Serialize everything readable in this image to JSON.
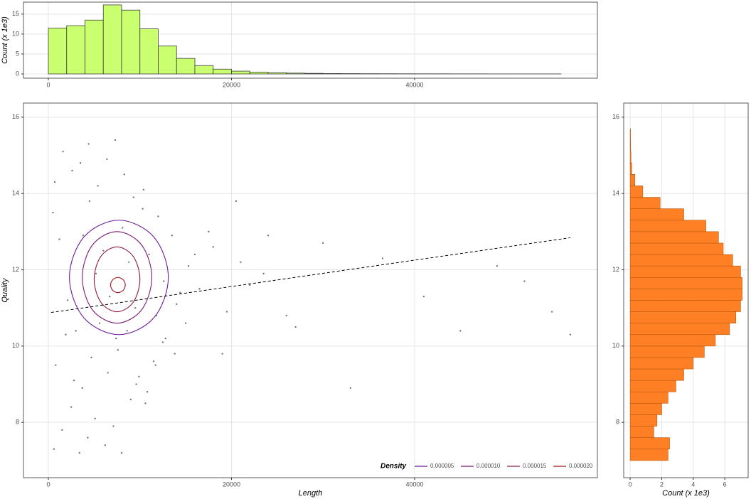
{
  "chart_data": [
    {
      "type": "histogram",
      "orientation": "vertical",
      "y_label": "Count (x 1e3)",
      "bins": [
        0,
        2000,
        4000,
        6000,
        8000,
        10000,
        12000,
        14000,
        16000,
        18000,
        20000,
        22000,
        24000,
        26000,
        28000,
        30000,
        32000,
        34000,
        36000,
        38000,
        40000,
        42000,
        44000,
        46000,
        48000,
        50000,
        52000,
        54000,
        56000
      ],
      "values": [
        11.5,
        12.1,
        13.5,
        17.3,
        16.0,
        11.3,
        7.0,
        3.9,
        2.1,
        1.2,
        0.7,
        0.45,
        0.3,
        0.2,
        0.15,
        0.1,
        0.08,
        0.06,
        0.05,
        0.04,
        0.03,
        0.03,
        0.02,
        0.02,
        0.01,
        0.01,
        0.01,
        0.01
      ],
      "color": "#caff70",
      "edge_color": "#3d3d3d",
      "xlim": [
        -2718,
        59961
      ],
      "xticks": [
        0,
        20000,
        40000
      ],
      "ylim": [
        -1.07,
        18.0
      ],
      "yticks": [
        0,
        5,
        10,
        15
      ],
      "grid": true
    },
    {
      "type": "scatter",
      "x_label": "Length",
      "y_label": "Quality",
      "color": "#3a3a3a",
      "x": [
        500,
        1200,
        2100,
        3000,
        3800,
        4500,
        5200,
        6000,
        6700,
        7400,
        8100,
        8800,
        9500,
        10300,
        11000,
        11800,
        12600,
        13500,
        14400,
        15300,
        600,
        1500,
        2500,
        3400,
        4300,
        5100,
        6200,
        7100,
        8000,
        9000,
        9900,
        10800,
        11700,
        12500,
        13800,
        15000,
        16500,
        18000,
        19500,
        21000,
        800,
        1900,
        2800,
        3700,
        4700,
        5600,
        6500,
        7600,
        8600,
        9600,
        10600,
        11500,
        12800,
        14000,
        16000,
        17500,
        19000,
        22000,
        24000,
        26000,
        700,
        1600,
        2600,
        3500,
        4400,
        5400,
        6400,
        7300,
        8300,
        9300,
        10400,
        12000,
        20500,
        23500,
        27000,
        30000,
        33000,
        36500,
        41000,
        45000,
        49000,
        52000,
        55000,
        57000
      ],
      "y": [
        13.5,
        12.8,
        11.2,
        10.4,
        12.9,
        13.8,
        11.9,
        12.5,
        11.3,
        10.2,
        13.1,
        12.2,
        11.0,
        13.6,
        12.4,
        10.8,
        11.7,
        12.9,
        11.4,
        12.1,
        7.3,
        7.8,
        8.4,
        7.2,
        7.6,
        8.1,
        7.4,
        7.9,
        7.2,
        8.6,
        9.2,
        8.8,
        9.5,
        10.1,
        9.8,
        10.6,
        11.5,
        12.6,
        10.9,
        12.2,
        9.5,
        10.3,
        9.1,
        8.9,
        9.7,
        10.6,
        9.3,
        9.9,
        10.4,
        9.0,
        8.5,
        9.6,
        10.2,
        11.1,
        12.4,
        13.0,
        9.8,
        11.6,
        12.9,
        10.8,
        14.3,
        15.1,
        14.6,
        14.8,
        15.3,
        14.2,
        14.9,
        15.4,
        14.5,
        13.9,
        14.1,
        13.4,
        13.8,
        11.9,
        10.5,
        12.7,
        8.9,
        12.3,
        11.3,
        10.4,
        12.1,
        11.7,
        10.9,
        10.3
      ],
      "trend": {
        "x": [
          300,
          57000
        ],
        "y": [
          10.88,
          12.84
        ]
      },
      "legend_title": "Density",
      "legend": "bottom-right",
      "contours": [
        {
          "level": {
            "value": 5e-06,
            "label": "0.000005"
          },
          "color": "#6a1b9a",
          "x": [
            13100,
            11518,
            7700,
            3882,
            2300,
            3882,
            7700,
            11518
          ],
          "y": [
            11.8,
            12.86,
            13.3,
            12.86,
            11.8,
            10.74,
            10.3,
            10.74
          ]
        },
        {
          "level": {
            "value": 1e-05,
            "label": "0.000010"
          },
          "color": "#7b1a70",
          "x": [
            11300,
            10187,
            7500,
            4813,
            3700,
            4813,
            7500,
            10187
          ],
          "y": [
            11.8,
            12.65,
            13.0,
            12.65,
            11.8,
            10.95,
            10.6,
            10.95
          ]
        },
        {
          "level": {
            "value": 1.5e-05,
            "label": "0.000015"
          },
          "color": "#8e1a48",
          "x": [
            10000,
            9268,
            7500,
            5732,
            5000,
            5732,
            7500,
            9268
          ],
          "y": [
            11.75,
            12.35,
            12.6,
            12.35,
            11.75,
            11.15,
            10.9,
            11.15
          ]
        },
        {
          "level": {
            "value": 2e-05,
            "label": "0.000020"
          },
          "color": "#a3161f",
          "x": [
            8400,
            8166,
            7600,
            7034,
            6800,
            7034,
            7600,
            8166
          ],
          "y": [
            11.6,
            11.74,
            11.8,
            11.74,
            11.6,
            11.46,
            11.4,
            11.46
          ]
        }
      ],
      "xlim": [
        -2718,
        59961
      ],
      "xticks": [
        0,
        20000,
        40000
      ],
      "ylim": [
        6.55,
        16.37
      ],
      "yticks": [
        8,
        10,
        12,
        14,
        16
      ],
      "grid": true
    },
    {
      "type": "histogram",
      "orientation": "horizontal",
      "x_label": "Count (x 1e3)",
      "bins": [
        7.0,
        7.3,
        7.6,
        7.9,
        8.2,
        8.5,
        8.8,
        9.1,
        9.4,
        9.7,
        10.0,
        10.3,
        10.6,
        10.9,
        11.2,
        11.5,
        11.8,
        12.1,
        12.4,
        12.7,
        13.0,
        13.3,
        13.6,
        13.9,
        14.2,
        14.5,
        14.8,
        15.1,
        15.4,
        15.7
      ],
      "values": [
        2.4,
        2.5,
        1.5,
        1.7,
        2.0,
        2.4,
        2.9,
        3.4,
        4.0,
        4.7,
        5.4,
        6.3,
        6.7,
        7.0,
        7.1,
        7.1,
        7.0,
        6.5,
        5.9,
        5.6,
        4.8,
        3.4,
        1.9,
        0.8,
        0.3,
        0.1,
        0.05,
        0.03,
        0.02
      ],
      "color": "#ff7f24",
      "edge_color": "#b85a10",
      "xlim": [
        -0.41,
        7.48
      ],
      "xticks": [
        0,
        2,
        4,
        6
      ],
      "ylim": [
        6.55,
        16.37
      ],
      "yticks": [
        8,
        10,
        12,
        14,
        16
      ],
      "grid": true
    }
  ]
}
